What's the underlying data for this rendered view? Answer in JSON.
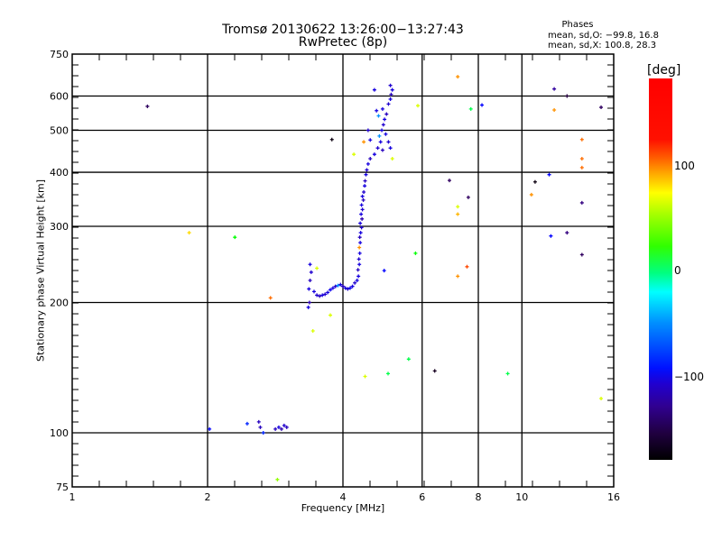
{
  "chart_data": {
    "type": "scatter",
    "title": "Tromsø 20130622 13:26:00−13:27:43",
    "subtitle": "RwPretec (8p)",
    "xlabel": "Frequency [MHz]",
    "ylabel": "Stationary phase Virtual Height [km]",
    "xscale": "log2",
    "yscale": "log10",
    "xlim": [
      1,
      16
    ],
    "ylim": [
      75,
      750
    ],
    "xticks": [
      1,
      2,
      4,
      6,
      8,
      10,
      16
    ],
    "yticks": [
      75,
      100,
      200,
      300,
      400,
      500,
      600,
      750
    ],
    "grid": true,
    "stats": {
      "heading": "Phases",
      "o_line": "mean, sd,O: −99.8, 16.8",
      "x_line": "mean, sd,X: 100.8, 28.3"
    },
    "colorbar": {
      "label": "[deg]",
      "range": [
        -180,
        180
      ],
      "ticks": [
        100,
        0,
        -100
      ],
      "tick_labels": [
        "100",
        "0",
        "−100"
      ]
    },
    "points_note": "each point is [frequency MHz, virtual height km, phase deg]",
    "points": [
      [
        3.38,
        245,
        -110
      ],
      [
        3.4,
        235,
        -115
      ],
      [
        3.38,
        225,
        -120
      ],
      [
        3.36,
        215,
        -110
      ],
      [
        3.37,
        200,
        -125
      ],
      [
        3.35,
        195,
        -110
      ],
      [
        3.45,
        212,
        -110
      ],
      [
        3.5,
        208,
        -115
      ],
      [
        3.55,
        207,
        -120
      ],
      [
        3.6,
        208,
        -110
      ],
      [
        3.65,
        209,
        -115
      ],
      [
        3.7,
        211,
        -110
      ],
      [
        3.75,
        214,
        -105
      ],
      [
        3.8,
        216,
        -110
      ],
      [
        3.85,
        218,
        -115
      ],
      [
        3.9,
        219,
        -60
      ],
      [
        3.95,
        220,
        -110
      ],
      [
        4.0,
        218,
        -120
      ],
      [
        4.05,
        216,
        -110
      ],
      [
        4.1,
        215,
        -115
      ],
      [
        4.15,
        216,
        -105
      ],
      [
        4.2,
        218,
        -110
      ],
      [
        4.25,
        222,
        -115
      ],
      [
        4.3,
        225,
        -110
      ],
      [
        4.33,
        230,
        -110
      ],
      [
        4.32,
        238,
        -120
      ],
      [
        4.35,
        245,
        -110
      ],
      [
        4.34,
        252,
        -115
      ],
      [
        4.36,
        260,
        -110
      ],
      [
        4.35,
        268,
        140
      ],
      [
        4.37,
        275,
        -110
      ],
      [
        4.36,
        283,
        -120
      ],
      [
        4.38,
        290,
        -110
      ],
      [
        4.4,
        298,
        -115
      ],
      [
        4.37,
        305,
        -110
      ],
      [
        4.41,
        312,
        -125
      ],
      [
        4.39,
        320,
        -110
      ],
      [
        4.42,
        328,
        -115
      ],
      [
        4.4,
        336,
        -110
      ],
      [
        4.44,
        345,
        -120
      ],
      [
        4.42,
        352,
        -110
      ],
      [
        4.45,
        360,
        -115
      ],
      [
        4.47,
        372,
        -110
      ],
      [
        4.48,
        382,
        -120
      ],
      [
        4.5,
        395,
        -110
      ],
      [
        4.52,
        405,
        -115
      ],
      [
        4.55,
        418,
        -110
      ],
      [
        4.6,
        430,
        -120
      ],
      [
        4.7,
        440,
        -110
      ],
      [
        4.78,
        455,
        -115
      ],
      [
        4.85,
        470,
        -110
      ],
      [
        4.82,
        485,
        -60
      ],
      [
        4.88,
        500,
        -110
      ],
      [
        4.92,
        515,
        -115
      ],
      [
        4.95,
        530,
        -110
      ],
      [
        5.0,
        545,
        -120
      ],
      [
        4.9,
        560,
        -110
      ],
      [
        5.05,
        575,
        -115
      ],
      [
        5.1,
        590,
        -110
      ],
      [
        5.12,
        605,
        -120
      ],
      [
        5.15,
        620,
        -110
      ],
      [
        5.1,
        635,
        -115
      ],
      [
        4.7,
        620,
        -110
      ],
      [
        4.75,
        555,
        -110
      ],
      [
        4.8,
        540,
        -60
      ],
      [
        4.98,
        490,
        -110
      ],
      [
        5.05,
        470,
        -115
      ],
      [
        4.9,
        450,
        -120
      ],
      [
        5.1,
        455,
        -110
      ],
      [
        5.15,
        430,
        100
      ],
      [
        4.6,
        475,
        -110
      ],
      [
        4.55,
        500,
        -115
      ],
      [
        1.47,
        568,
        -150
      ],
      [
        1.82,
        290,
        120
      ],
      [
        2.3,
        283,
        40
      ],
      [
        2.76,
        205,
        150
      ],
      [
        2.02,
        102,
        -100
      ],
      [
        2.45,
        105,
        -90
      ],
      [
        2.6,
        106,
        -120
      ],
      [
        2.62,
        103,
        -120
      ],
      [
        2.66,
        100,
        -90
      ],
      [
        2.83,
        102,
        -120
      ],
      [
        2.88,
        103,
        -110
      ],
      [
        2.92,
        102,
        -125
      ],
      [
        2.96,
        104,
        -115
      ],
      [
        3.0,
        103,
        -120
      ],
      [
        2.86,
        78,
        80
      ],
      [
        3.78,
        476,
        -175
      ],
      [
        3.5,
        240,
        100
      ],
      [
        3.75,
        187,
        100
      ],
      [
        3.43,
        172,
        100
      ],
      [
        4.45,
        470,
        140
      ],
      [
        4.23,
        440,
        100
      ],
      [
        4.94,
        237,
        -100
      ],
      [
        4.48,
        135,
        100
      ],
      [
        5.04,
        137,
        20
      ],
      [
        5.6,
        148,
        20
      ],
      [
        5.87,
        570,
        100
      ],
      [
        5.8,
        260,
        40
      ],
      [
        6.4,
        139,
        -170
      ],
      [
        6.9,
        383,
        -150
      ],
      [
        7.2,
        665,
        140
      ],
      [
        7.2,
        333,
        100
      ],
      [
        7.2,
        320,
        130
      ],
      [
        7.2,
        230,
        140
      ],
      [
        7.55,
        242,
        160
      ],
      [
        7.6,
        350,
        -150
      ],
      [
        7.7,
        560,
        20
      ],
      [
        8.15,
        572,
        -100
      ],
      [
        9.3,
        137,
        20
      ],
      [
        10.7,
        380,
        -175
      ],
      [
        10.5,
        355,
        140
      ],
      [
        11.5,
        395,
        -100
      ],
      [
        11.6,
        285,
        -100
      ],
      [
        11.8,
        623,
        -130
      ],
      [
        11.8,
        557,
        140
      ],
      [
        12.6,
        600,
        -160
      ],
      [
        12.6,
        290,
        -140
      ],
      [
        13.6,
        476,
        150
      ],
      [
        13.6,
        430,
        150
      ],
      [
        13.6,
        410,
        150
      ],
      [
        13.6,
        340,
        -140
      ],
      [
        13.6,
        258,
        -150
      ],
      [
        15,
        565,
        -150
      ],
      [
        15,
        120,
        100
      ]
    ]
  }
}
